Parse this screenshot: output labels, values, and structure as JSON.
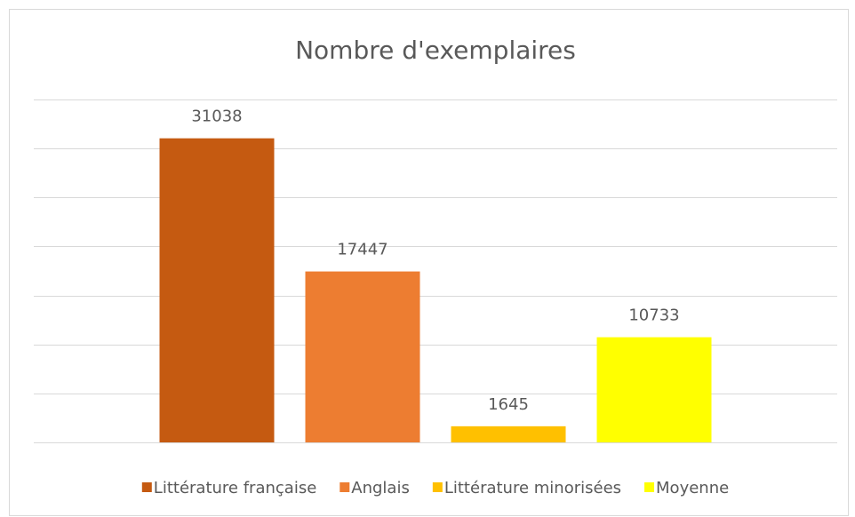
{
  "chart_data": {
    "type": "bar",
    "title": "Nombre d'exemplaires",
    "series": [
      {
        "name": "Littérature française",
        "color": "#c55a11",
        "values": [
          31038
        ]
      },
      {
        "name": "Anglais",
        "color": "#ed7d31",
        "values": [
          17447
        ]
      },
      {
        "name": "Littérature minorisées",
        "color": "#ffc000",
        "values": [
          1645
        ]
      },
      {
        "name": "Moyenne",
        "color": "#ffff00",
        "values": [
          10733
        ]
      }
    ],
    "ylim": [
      0,
      35000
    ],
    "yticks": [
      0,
      5000,
      10000,
      15000,
      20000,
      25000,
      30000,
      35000
    ],
    "grid": true,
    "legend": "bottom"
  }
}
